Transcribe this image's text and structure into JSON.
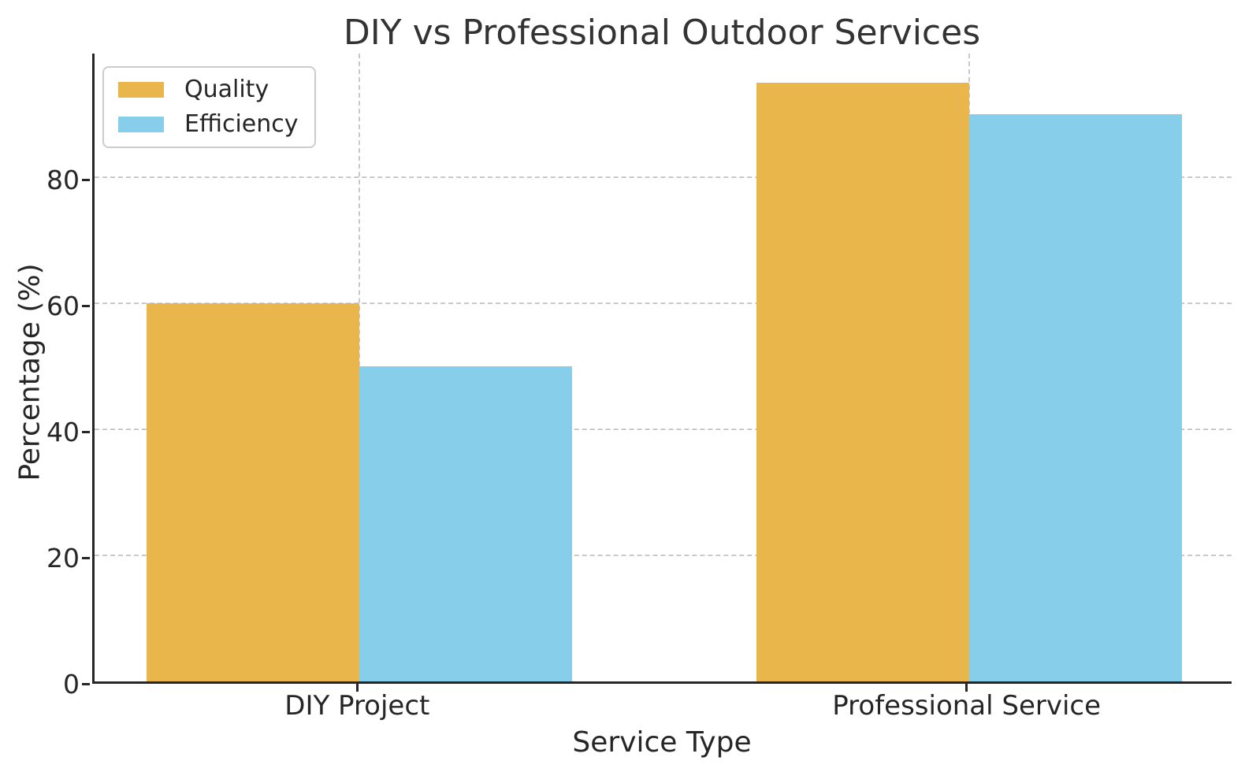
{
  "chart_data": {
    "type": "bar",
    "title": "DIY vs Professional Outdoor Services",
    "xlabel": "Service Type",
    "ylabel": "Percentage (%)",
    "categories": [
      "DIY Project",
      "Professional Service"
    ],
    "series": [
      {
        "name": "Quality",
        "color": "#e8b64a",
        "values": [
          60,
          95
        ]
      },
      {
        "name": "Efficiency",
        "color": "#87ceeb",
        "values": [
          50,
          90
        ]
      }
    ],
    "ylim": [
      0,
      100
    ],
    "yticks": [
      0,
      20,
      40,
      60,
      80
    ],
    "grid": "dashed gridlines on both axes, drawn behind bars",
    "legend_position": "upper left"
  },
  "colors": {
    "quality_bar": "#e8b64a",
    "efficiency_bar": "#87ceeb",
    "gridline": "#c9c9c9",
    "axis_spine": "#262626",
    "text": "#262626",
    "title_text": "#333333",
    "legend_border": "#cccccc",
    "background": "#ffffff"
  }
}
